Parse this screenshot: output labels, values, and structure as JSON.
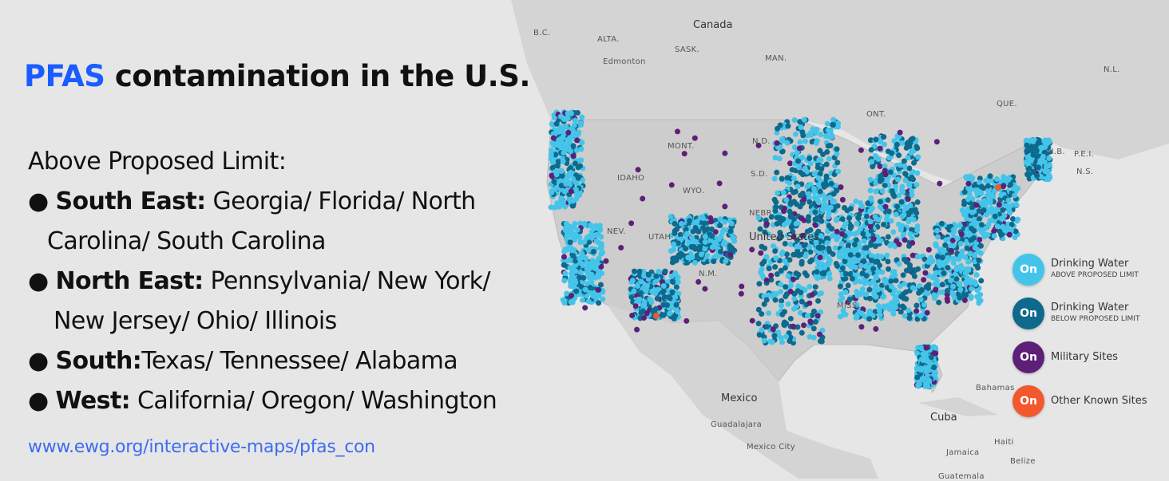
{
  "title": {
    "highlight": "PFAS",
    "rest": " contamination in the U.S."
  },
  "list": {
    "heading": "Above Proposed Limit:",
    "bullet": "●",
    "items": [
      {
        "region": "South East:",
        "states": " Georgia/ Florida/ North",
        "cont": "Carolina/ South Carolina"
      },
      {
        "region": "North East:",
        "states": " Pennsylvania/ New York/",
        "cont": "New Jersey/ Ohio/ Illinois"
      },
      {
        "region": "South:",
        "states": "Texas/ Tennessee/ Alabama"
      },
      {
        "region": "West:",
        "states": " California/ Oregon/ Washington"
      }
    ]
  },
  "url": "www.ewg.org/interactive-maps/pfas_con",
  "map_labels": [
    "Canada",
    "B.C.",
    "ALTA.",
    "Edmonton",
    "SASK.",
    "MAN.",
    "ONT.",
    "QUE.",
    "N.L.",
    "N.B.",
    "P.E.I.",
    "N.S.",
    "MONT.",
    "IDAHO",
    "WYO.",
    "N.D.",
    "S.D.",
    "NEBR.",
    "NEV.",
    "UTAH",
    "N.M.",
    "United States",
    "MISS.",
    "Mexico",
    "Guadalajara",
    "Mexico City",
    "Cuba",
    "Bahamas",
    "Jamaica",
    "Haiti",
    "Belize",
    "Guatemala"
  ],
  "legend": [
    {
      "toggle": "On",
      "label": "Drinking Water",
      "sub": "ABOVE PROPOSED LIMIT",
      "color": "#45c4ea"
    },
    {
      "toggle": "On",
      "label": "Drinking Water",
      "sub": "BELOW PROPOSED LIMIT",
      "color": "#0d6a8c"
    },
    {
      "toggle": "On",
      "label": "Military Sites",
      "sub": "",
      "color": "#5e1f78"
    },
    {
      "toggle": "On",
      "label": "Other Known Sites",
      "sub": "",
      "color": "#f2572e"
    }
  ]
}
